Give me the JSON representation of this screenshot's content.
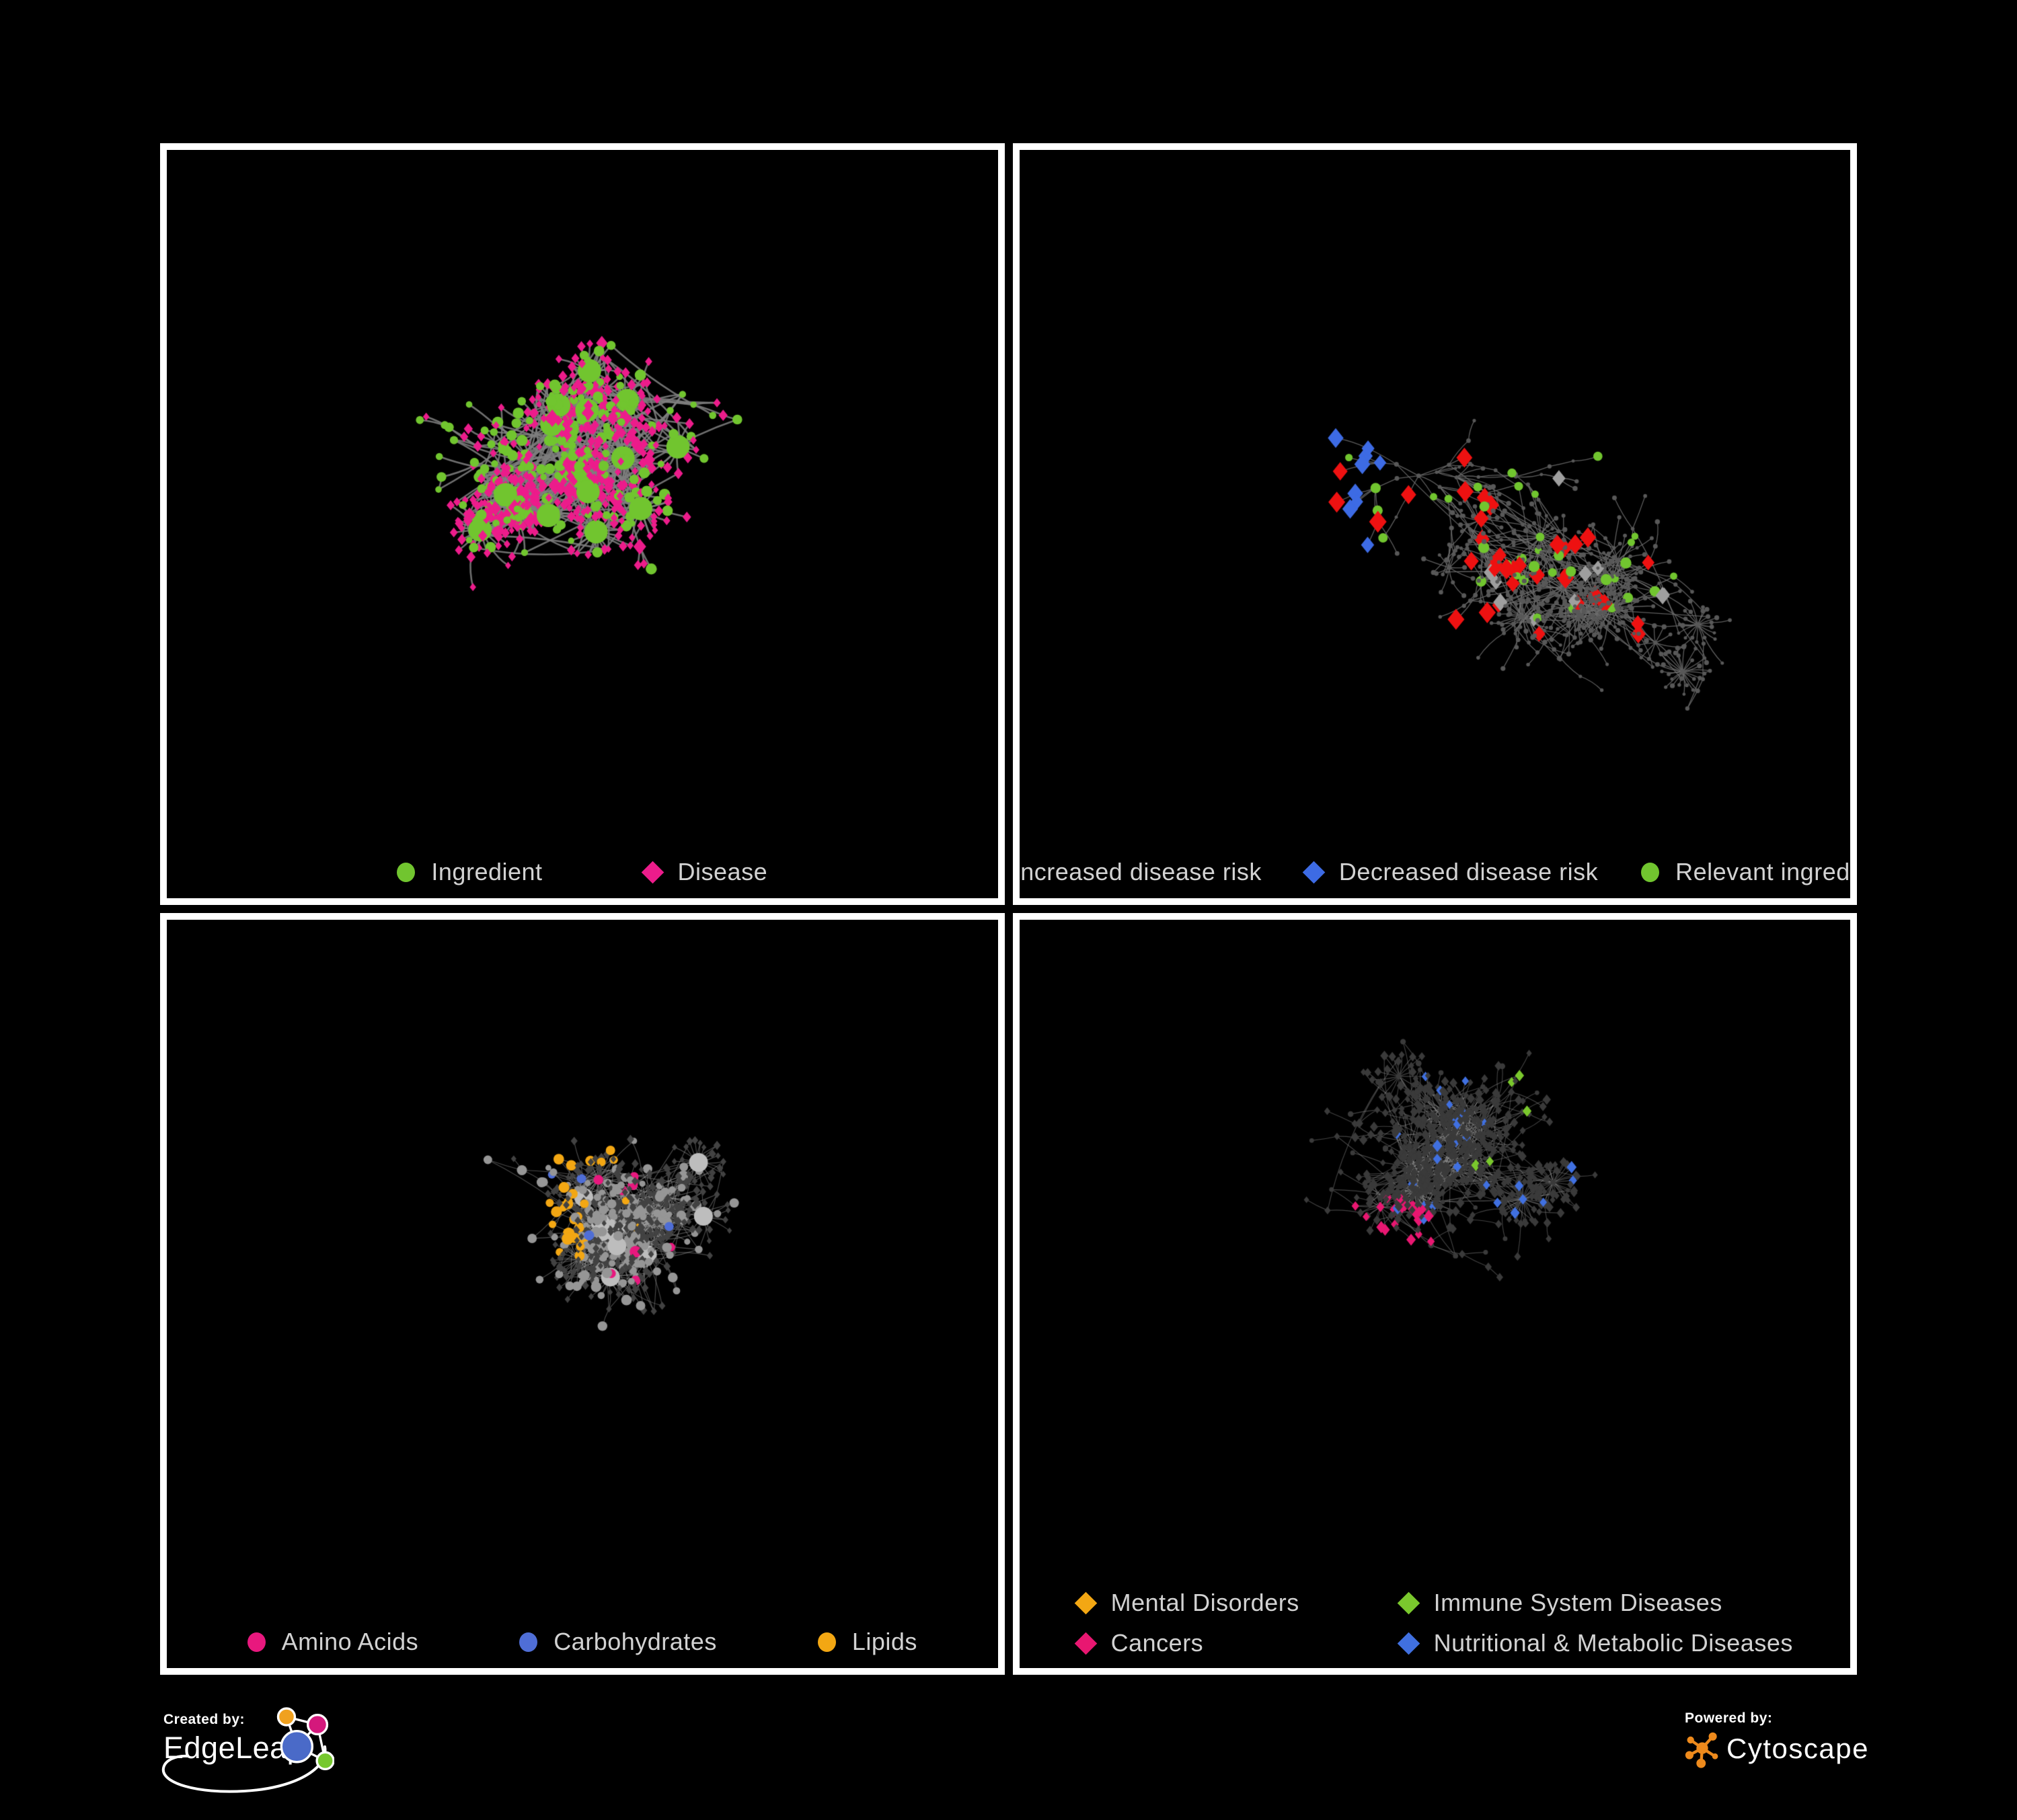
{
  "page": {
    "background": "#000000",
    "panel_border": "#ffffff",
    "legend_text_color": "#d2d2d2"
  },
  "panels": [
    {
      "id": "ingredient-disease",
      "legend": {
        "layout": "row",
        "rows": 1,
        "items": [
          {
            "label": "Ingredient",
            "shape": "circle",
            "color": "#71c52f"
          },
          {
            "label": "Disease",
            "shape": "diamond",
            "color": "#ec1c8b"
          }
        ]
      },
      "graph": {
        "type": "two-class",
        "seed": 11,
        "nodes": 620,
        "step": 30,
        "parent_bias": 1.5,
        "burst_p": 0.05,
        "burst_min": 10,
        "burst_span": 28,
        "burst_r": 30,
        "cross_p": 0.3,
        "cross_d": 260,
        "edge_color": "#7e7e7e",
        "edge_width": 2.6,
        "edge_alpha": 0.88,
        "colors": {
          "ingredient": "#71c52f",
          "disease": "#ec1c8b"
        }
      }
    },
    {
      "id": "disease-risk",
      "legend": {
        "layout": "row",
        "rows": 1,
        "tight": true,
        "items": [
          {
            "label": "Increased disease risk",
            "shape": "diamond",
            "color": "#ee1111"
          },
          {
            "label": "Decreased disease risk",
            "shape": "diamond",
            "color": "#3d6be4"
          },
          {
            "label": "Relevant ingredient",
            "shape": "circle",
            "color": "#71c52f"
          }
        ]
      },
      "graph": {
        "type": "risk-highlight",
        "seed": 23,
        "nodes": 660,
        "step": 34,
        "parent_bias": 0.9,
        "burst_p": 0.035,
        "burst_min": 8,
        "burst_span": 24,
        "burst_r": 26,
        "cross_p": 0.1,
        "cross_d": 200,
        "edge_color": "#6e6e6e",
        "edge_width": 1.3,
        "edge_alpha": 0.85,
        "colors": {
          "base": "#585858",
          "increased": "#ee1111",
          "decreased": "#3d6be4",
          "neutral": "#9f9f9f",
          "ingredient": "#71c52f"
        },
        "counts": {
          "increased": 34,
          "decreased": 13,
          "neutral": 10,
          "ingredient": 36
        }
      }
    },
    {
      "id": "ingredient-classes",
      "legend": {
        "layout": "row",
        "rows": 1,
        "items": [
          {
            "label": "Amino Acids",
            "shape": "circle",
            "color": "#e8187e"
          },
          {
            "label": "Carbohydrates",
            "shape": "circle",
            "color": "#4f6ed6"
          },
          {
            "label": "Lipids",
            "shape": "circle",
            "color": "#f3a713"
          }
        ]
      },
      "graph": {
        "type": "ingredient-classes",
        "seed": 37,
        "nodes": 640,
        "step": 30,
        "parent_bias": 1.35,
        "burst_p": 0.05,
        "burst_min": 10,
        "burst_span": 30,
        "burst_r": 28,
        "cross_p": 0.25,
        "cross_d": 240,
        "edge_color": "#a3a3a3",
        "edge_width": 1.15,
        "edge_alpha": 0.45,
        "lipid_foci": [
          [
            0.52,
            0.28,
            0.075
          ],
          [
            0.45,
            0.44,
            0.06
          ],
          [
            0.7,
            0.62,
            0.05
          ],
          [
            0.25,
            0.56,
            0.035
          ]
        ],
        "carb_foci": [
          [
            0.58,
            0.3,
            0.035
          ]
        ],
        "colors": {
          "disease": "#424242",
          "other": "#969696",
          "hub": "#bdbdbd",
          "amino": "#e8187e",
          "carb": "#4f6ed6",
          "lipid": "#f3a713"
        }
      }
    },
    {
      "id": "disease-classes",
      "legend": {
        "layout": "grid",
        "rows": 2,
        "items": [
          {
            "label": "Mental Disorders",
            "shape": "diamond",
            "color": "#f3a713"
          },
          {
            "label": "Immune System Diseases",
            "shape": "diamond",
            "color": "#7ac82d"
          },
          {
            "label": "Cancers",
            "shape": "diamond",
            "color": "#e81771"
          },
          {
            "label": "Nutritional & Metabolic Diseases",
            "shape": "diamond",
            "color": "#4070e0"
          }
        ]
      },
      "graph": {
        "type": "disease-classes",
        "seed": 53,
        "nodes": 680,
        "step": 31,
        "parent_bias": 1.1,
        "burst_p": 0.045,
        "burst_min": 8,
        "burst_span": 28,
        "burst_r": 26,
        "cross_p": 0.15,
        "cross_d": 220,
        "edge_color": "#9a9a9a",
        "edge_width": 1.15,
        "edge_alpha": 0.42,
        "foci": {
          "mental": [
            [
              0.17,
              0.44,
              0.1
            ]
          ],
          "cancer": [
            [
              0.44,
              0.52,
              0.085
            ],
            [
              0.52,
              0.61,
              0.055
            ]
          ],
          "metabolic": [
            [
              0.63,
              0.62,
              0.065
            ],
            [
              0.77,
              0.28,
              0.085
            ],
            [
              0.86,
              0.42,
              0.05
            ],
            [
              0.33,
              0.8,
              0.05
            ],
            [
              0.9,
              0.14,
              0.045
            ]
          ],
          "immune": [
            [
              0.24,
              0.52,
              0.05
            ]
          ]
        },
        "prob": {
          "mental": 0.75,
          "cancer": 0.5,
          "metabolic": 0.45,
          "immune": 0.2
        },
        "colors": {
          "base": "#3a3a3a",
          "mental": "#f3a713",
          "cancer": "#e81771",
          "immune": "#7ac82d",
          "metabolic": "#4070e0"
        }
      }
    }
  ],
  "footer": {
    "created_by": {
      "label": "Created by:",
      "brand": "EdgeLeap"
    },
    "powered_by": {
      "label": "Powered by:",
      "brand": "Cytoscape"
    },
    "edgeleap_logo_colors": {
      "orange": "#f0a11f",
      "pink": "#d4187c",
      "blue": "#4a6ac8",
      "green": "#76c82e"
    },
    "cytoscape_logo_color": "#ee8a1c"
  }
}
